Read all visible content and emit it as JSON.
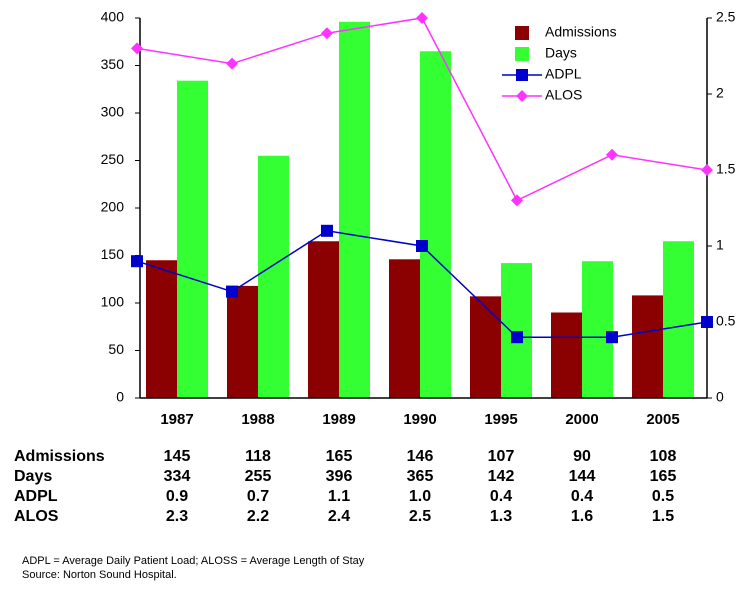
{
  "chart_data": {
    "type": "bar-line",
    "categories": [
      "1987",
      "1988",
      "1989",
      "1990",
      "1995",
      "2000",
      "2005"
    ],
    "series": [
      {
        "name": "Admissions",
        "type": "bar",
        "color": "#8b0000",
        "values": [
          145,
          118,
          165,
          146,
          107,
          90,
          108
        ]
      },
      {
        "name": "Days",
        "type": "bar",
        "color": "#33ff33",
        "values": [
          334,
          255,
          396,
          365,
          142,
          144,
          165
        ]
      },
      {
        "name": "ADPL",
        "type": "line",
        "axis": "y2",
        "color": "#0000cc",
        "marker": "square",
        "values": [
          0.9,
          0.7,
          1.1,
          1.0,
          0.4,
          0.4,
          0.5
        ],
        "value_labels": [
          "0.9",
          "0.7",
          "1.1",
          "1.0",
          "0.4",
          "0.4",
          "0.5"
        ]
      },
      {
        "name": "ALOS",
        "type": "line",
        "axis": "y2",
        "color": "#ff33ff",
        "marker": "diamond",
        "values": [
          2.3,
          2.2,
          2.4,
          2.5,
          1.3,
          1.6,
          1.5
        ],
        "value_labels": [
          "2.3",
          "2.2",
          "2.4",
          "2.5",
          "1.3",
          "1.6",
          "1.5"
        ]
      }
    ],
    "ylim": [
      0,
      400
    ],
    "yticks": [
      0,
      50,
      100,
      150,
      200,
      250,
      300,
      350,
      400
    ],
    "y2lim": [
      0,
      2.5
    ],
    "y2ticks": [
      0,
      0.5,
      1,
      1.5,
      2,
      2.5
    ],
    "grid": false,
    "legend": "top-right",
    "notes": [
      "ADPL = Average Daily Patient Load; ALOSS = Average Length of Stay",
      "Source: Norton Sound Hospital."
    ]
  }
}
